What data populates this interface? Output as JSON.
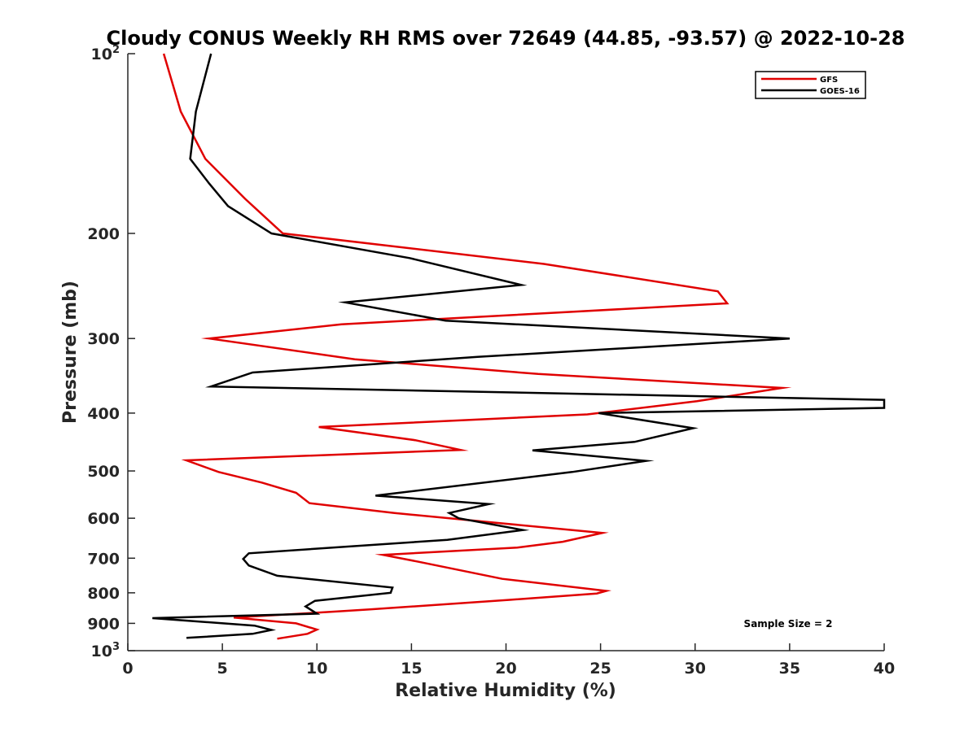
{
  "chart_data": {
    "type": "line",
    "title": "Cloudy CONUS Weekly RH RMS over 72649 (44.85, -93.57) @ 2022-10-28",
    "xlabel": "Relative Humidity (%)",
    "ylabel": "Pressure (mb)",
    "xlim": [
      0,
      40
    ],
    "ylim": [
      100,
      1000
    ],
    "y_scale": "log",
    "y_reversed": true,
    "grid": false,
    "legend_position": "top-right",
    "annotation": "Sample Size = 2",
    "x_ticks": [
      {
        "value": 0,
        "label": "0"
      },
      {
        "value": 5,
        "label": "5"
      },
      {
        "value": 10,
        "label": "10"
      },
      {
        "value": 15,
        "label": "15"
      },
      {
        "value": 20,
        "label": "20"
      },
      {
        "value": 25,
        "label": "25"
      },
      {
        "value": 30,
        "label": "30"
      },
      {
        "value": 35,
        "label": "35"
      },
      {
        "value": 40,
        "label": "40"
      }
    ],
    "y_ticks": [
      {
        "value": 100,
        "label": "10",
        "exp": "2"
      },
      {
        "value": 200,
        "label": "200"
      },
      {
        "value": 300,
        "label": "300"
      },
      {
        "value": 400,
        "label": "400"
      },
      {
        "value": 500,
        "label": "500"
      },
      {
        "value": 600,
        "label": "600"
      },
      {
        "value": 700,
        "label": "700"
      },
      {
        "value": 800,
        "label": "800"
      },
      {
        "value": 900,
        "label": "900"
      },
      {
        "value": 1000,
        "label": "10",
        "exp": "3"
      }
    ],
    "series": [
      {
        "name": "GFS",
        "color": "#e00000",
        "points": [
          [
            1.9,
            100
          ],
          [
            2.8,
            125
          ],
          [
            4.1,
            150
          ],
          [
            6.2,
            175
          ],
          [
            8.2,
            200
          ],
          [
            22.0,
            225
          ],
          [
            31.2,
            250
          ],
          [
            31.7,
            262
          ],
          [
            11.3,
            284
          ],
          [
            4.3,
            300
          ],
          [
            12.0,
            325
          ],
          [
            21.7,
            344
          ],
          [
            34.6,
            363
          ],
          [
            30.1,
            382
          ],
          [
            24.3,
            402
          ],
          [
            10.1,
            422
          ],
          [
            15.2,
            444
          ],
          [
            17.6,
            461
          ],
          [
            3.1,
            480
          ],
          [
            4.8,
            502
          ],
          [
            7.1,
            523
          ],
          [
            8.9,
            544
          ],
          [
            9.6,
            566
          ],
          [
            14.1,
            588
          ],
          [
            19.8,
            612
          ],
          [
            25.1,
            635
          ],
          [
            23.0,
            657
          ],
          [
            20.6,
            672
          ],
          [
            13.5,
            691
          ],
          [
            15.4,
            710
          ],
          [
            19.8,
            758
          ],
          [
            25.3,
            794
          ],
          [
            24.8,
            802
          ],
          [
            20.2,
            822
          ],
          [
            12.8,
            853
          ],
          [
            11.0,
            860
          ],
          [
            5.6,
            880
          ],
          [
            8.9,
            900
          ],
          [
            10.0,
            922
          ],
          [
            9.5,
            937
          ],
          [
            7.9,
            955
          ]
        ]
      },
      {
        "name": "GOES-16",
        "color": "#000000",
        "points": [
          [
            4.4,
            100
          ],
          [
            3.6,
            125
          ],
          [
            3.3,
            150
          ],
          [
            4.3,
            165
          ],
          [
            5.3,
            180
          ],
          [
            7.6,
            200
          ],
          [
            14.9,
            220
          ],
          [
            20.8,
            244
          ],
          [
            11.5,
            261
          ],
          [
            16.8,
            280
          ],
          [
            35.0,
            300
          ],
          [
            18.5,
            322
          ],
          [
            6.6,
            342
          ],
          [
            4.4,
            361
          ],
          [
            40.0,
            380
          ],
          [
            40.0,
            392
          ],
          [
            24.9,
            400
          ],
          [
            29.9,
            424
          ],
          [
            26.8,
            447
          ],
          [
            21.4,
            462
          ],
          [
            27.4,
            481
          ],
          [
            23.5,
            502
          ],
          [
            13.1,
            550
          ],
          [
            19.1,
            568
          ],
          [
            17.0,
            588
          ],
          [
            17.5,
            600
          ],
          [
            20.9,
            628
          ],
          [
            16.9,
            652
          ],
          [
            6.4,
            687
          ],
          [
            6.1,
            702
          ],
          [
            6.4,
            720
          ],
          [
            7.9,
            749
          ],
          [
            14.0,
            784
          ],
          [
            13.9,
            800
          ],
          [
            9.9,
            825
          ],
          [
            9.4,
            843
          ],
          [
            10.0,
            867
          ],
          [
            1.3,
            882
          ],
          [
            6.7,
            908
          ],
          [
            7.6,
            923
          ],
          [
            6.6,
            937
          ],
          [
            3.1,
            952
          ]
        ]
      }
    ]
  }
}
